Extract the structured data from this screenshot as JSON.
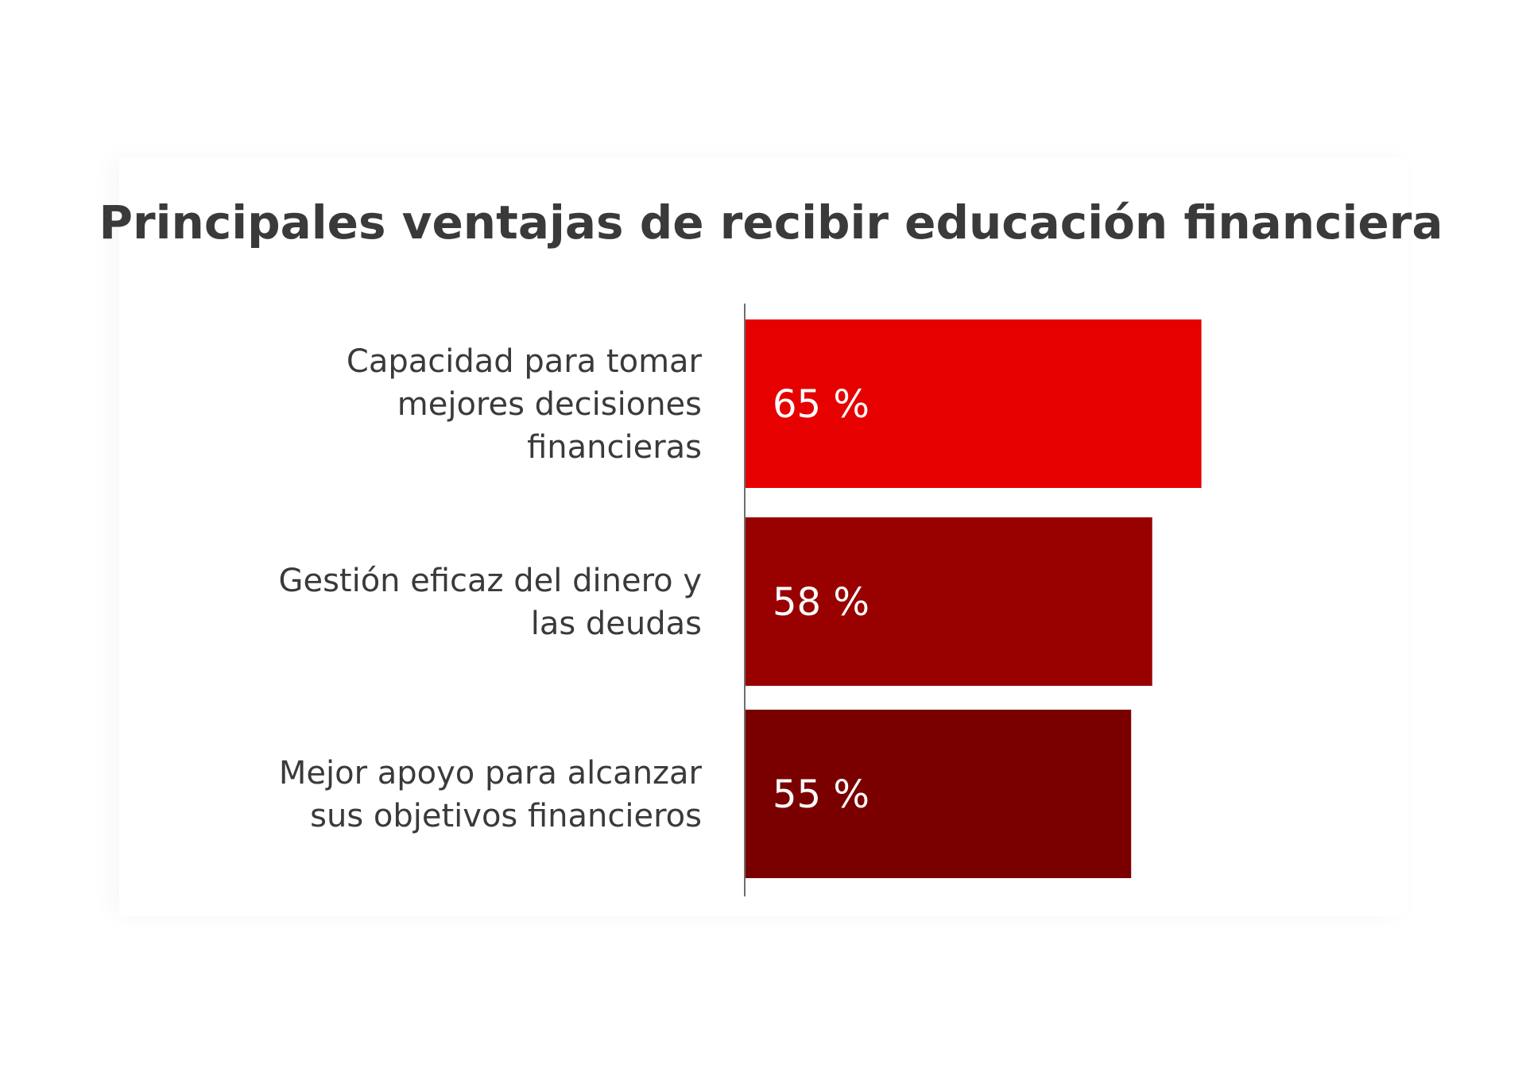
{
  "chart_data": {
    "type": "bar",
    "orientation": "horizontal",
    "title": "Principales ventajas de recibir educación financiera",
    "categories": [
      [
        "Capacidad para tomar",
        "mejores decisiones",
        "financieras"
      ],
      [
        "Gestión eficaz del dinero y",
        "las deudas"
      ],
      [
        "Mejor apoyo para alcanzar",
        "sus objetivos financieros"
      ]
    ],
    "values": [
      65,
      58,
      55
    ],
    "value_labels": [
      "65 %",
      "58 %",
      "55 %"
    ],
    "bar_colors": [
      "#e60000",
      "#990000",
      "#7a0000"
    ],
    "xlim": [
      0,
      100
    ],
    "grid": false,
    "legend": "none"
  }
}
